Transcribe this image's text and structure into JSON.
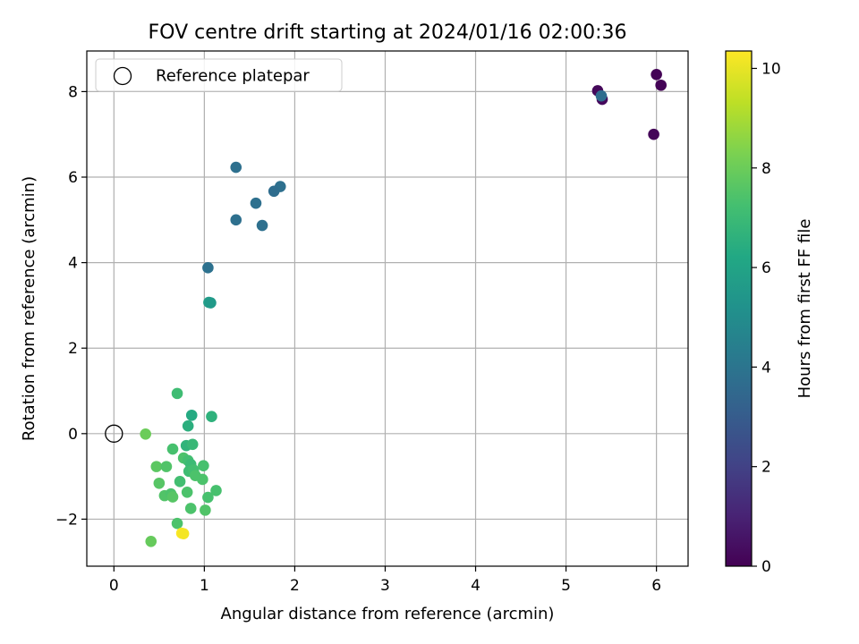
{
  "chart_data": {
    "type": "scatter",
    "title": "FOV centre drift starting at 2024/01/16 02:00:36",
    "xlabel": "Angular distance from reference (arcmin)",
    "ylabel": "Rotation from reference (arcmin)",
    "xlim": [
      -0.3,
      6.35
    ],
    "ylim": [
      -3.1,
      8.95
    ],
    "xticks": [
      0,
      1,
      2,
      3,
      4,
      5,
      6
    ],
    "yticks": [
      -2,
      0,
      2,
      4,
      6,
      8
    ],
    "ytick_labels": [
      "−2",
      "0",
      "2",
      "4",
      "6",
      "8"
    ],
    "grid": true,
    "legend": {
      "placement": "top-left",
      "entries": [
        "Reference platepar"
      ]
    },
    "reference_point": {
      "x": 0,
      "y": 0,
      "marker": "open-circle"
    },
    "colorbar": {
      "label": "Hours from first FF file",
      "range": [
        0,
        10.35
      ],
      "ticks": [
        0,
        2,
        4,
        6,
        8,
        10
      ],
      "colormap": "viridis"
    },
    "points": [
      {
        "x": 6.0,
        "y": 8.4,
        "c": 0.05
      },
      {
        "x": 6.05,
        "y": 8.15,
        "c": 0.1
      },
      {
        "x": 5.35,
        "y": 8.02,
        "c": 0.2
      },
      {
        "x": 5.4,
        "y": 7.82,
        "c": 0.25
      },
      {
        "x": 5.97,
        "y": 7.0,
        "c": 0.15
      },
      {
        "x": 5.39,
        "y": 7.9,
        "c": 3.7
      },
      {
        "x": 1.35,
        "y": 6.23,
        "c": 3.8
      },
      {
        "x": 1.84,
        "y": 5.78,
        "c": 3.8
      },
      {
        "x": 1.77,
        "y": 5.67,
        "c": 3.7
      },
      {
        "x": 1.57,
        "y": 5.39,
        "c": 3.8
      },
      {
        "x": 1.35,
        "y": 5.0,
        "c": 3.8
      },
      {
        "x": 1.64,
        "y": 4.87,
        "c": 3.8
      },
      {
        "x": 1.04,
        "y": 3.88,
        "c": 3.85
      },
      {
        "x": 1.05,
        "y": 3.07,
        "c": 5.7
      },
      {
        "x": 1.07,
        "y": 3.06,
        "c": 5.6
      },
      {
        "x": 0.7,
        "y": 0.94,
        "c": 7.1
      },
      {
        "x": 0.86,
        "y": 0.43,
        "c": 6.3
      },
      {
        "x": 1.08,
        "y": 0.4,
        "c": 6.6
      },
      {
        "x": 0.82,
        "y": 0.18,
        "c": 6.5
      },
      {
        "x": 0.35,
        "y": -0.01,
        "c": 8.0
      },
      {
        "x": 0.8,
        "y": -0.28,
        "c": 6.7
      },
      {
        "x": 0.87,
        "y": -0.25,
        "c": 6.9
      },
      {
        "x": 0.65,
        "y": -0.36,
        "c": 7.3
      },
      {
        "x": 0.77,
        "y": -0.57,
        "c": 7.4
      },
      {
        "x": 0.82,
        "y": -0.63,
        "c": 7.2
      },
      {
        "x": 0.85,
        "y": -0.72,
        "c": 7.0
      },
      {
        "x": 0.47,
        "y": -0.77,
        "c": 7.7
      },
      {
        "x": 0.58,
        "y": -0.77,
        "c": 7.5
      },
      {
        "x": 0.99,
        "y": -0.75,
        "c": 7.3
      },
      {
        "x": 0.83,
        "y": -0.88,
        "c": 7.1
      },
      {
        "x": 0.88,
        "y": -0.85,
        "c": 7.2
      },
      {
        "x": 0.9,
        "y": -0.98,
        "c": 7.4
      },
      {
        "x": 0.98,
        "y": -1.07,
        "c": 7.4
      },
      {
        "x": 0.73,
        "y": -1.12,
        "c": 7.2
      },
      {
        "x": 0.5,
        "y": -1.16,
        "c": 7.6
      },
      {
        "x": 1.13,
        "y": -1.33,
        "c": 7.3
      },
      {
        "x": 0.81,
        "y": -1.37,
        "c": 7.4
      },
      {
        "x": 0.56,
        "y": -1.45,
        "c": 7.5
      },
      {
        "x": 0.63,
        "y": -1.41,
        "c": 7.4
      },
      {
        "x": 0.65,
        "y": -1.48,
        "c": 7.6
      },
      {
        "x": 1.04,
        "y": -1.49,
        "c": 7.3
      },
      {
        "x": 0.85,
        "y": -1.75,
        "c": 7.4
      },
      {
        "x": 1.01,
        "y": -1.79,
        "c": 7.5
      },
      {
        "x": 0.7,
        "y": -2.1,
        "c": 7.4
      },
      {
        "x": 0.41,
        "y": -2.52,
        "c": 7.9
      },
      {
        "x": 0.75,
        "y": -2.33,
        "c": 10.3
      },
      {
        "x": 0.77,
        "y": -2.34,
        "c": 10.2
      }
    ]
  }
}
